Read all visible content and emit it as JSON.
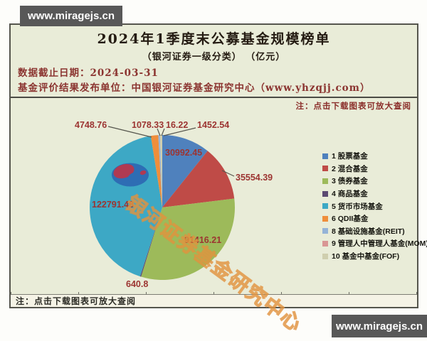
{
  "watermarks": {
    "top": "www.miragejs.cn",
    "bottom": "www.miragejs.cn"
  },
  "header": {
    "title": "2024年1季度末公募基金规模榜单",
    "subtitle": "（银河证券一级分类） （亿元）",
    "data_cutoff": "数据截止日期：2024-03-31",
    "publisher": "基金评价结果发布单位：中国银河证券基金研究中心（www.yhzqjj.com）",
    "zoom_note": "注：点击下载图表可放大查阅"
  },
  "footer": {
    "note": "注：点击下载图表可放大查阅"
  },
  "pie_watermark": {
    "text": "银河证券基金研究中心",
    "color": "#e09040"
  },
  "chart_data": {
    "type": "pie",
    "title": "2024年1季度末公募基金规模榜单（银河证券一级分类）（亿元）",
    "unit": "亿元",
    "start_angle_deg": 0,
    "direction": "clockwise",
    "legend_position": "right",
    "categories": [
      "1 股票基金",
      "2 混合基金",
      "3 债券基金",
      "4 商品基金",
      "5 货币市场基金",
      "6 QDII基金",
      "8 基础设施基金(REIT)",
      "9 管理人中管理人基金(MOM)",
      "10 基金中基金(FOF)"
    ],
    "values": [
      30992.45,
      35554.39,
      91416.21,
      640.8,
      122791.48,
      4748.76,
      1078.33,
      16.22,
      1452.54
    ],
    "value_labels": [
      "30992.45",
      "35554.39",
      "91416.21",
      "640.8",
      "122791.48",
      "4748.76",
      "1078.33",
      "16.22",
      "1452.54"
    ],
    "colors": [
      "#4f81bd",
      "#bf4b47",
      "#9dba5a",
      "#5c4a72",
      "#3da8c5",
      "#ef8e3b",
      "#95b3d7",
      "#d99694",
      "#cfceae"
    ],
    "label_color": "#9c3431",
    "background": "#e9ecd8",
    "logo_colors": {
      "blue": "#2e6db4",
      "crimson": "#b03a52"
    }
  }
}
